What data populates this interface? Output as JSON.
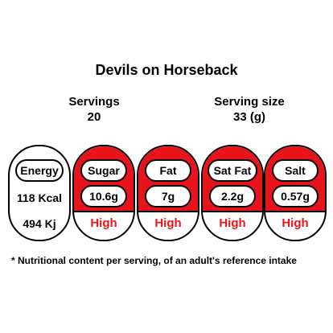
{
  "title": "Devils on Horseback",
  "servings": {
    "label": "Servings",
    "value": "20"
  },
  "serving_size": {
    "label": "Serving size",
    "value": "33 (g)"
  },
  "energy": {
    "label": "Energy",
    "kcal": "118 Kcal",
    "kj": "494 Kj"
  },
  "nutrients": [
    {
      "name": "Sugar",
      "amount": "10.6g",
      "level": "High"
    },
    {
      "name": "Fat",
      "amount": "7g",
      "level": "High"
    },
    {
      "name": "Sat Fat",
      "amount": "2.2g",
      "level": "High"
    },
    {
      "name": "Salt",
      "amount": "0.57g",
      "level": "High"
    }
  ],
  "colors": {
    "high": "#e8141b",
    "outline": "#000000",
    "background": "#ffffff"
  },
  "footnote": "* Nutritional content per serving, of an adult's reference intake"
}
